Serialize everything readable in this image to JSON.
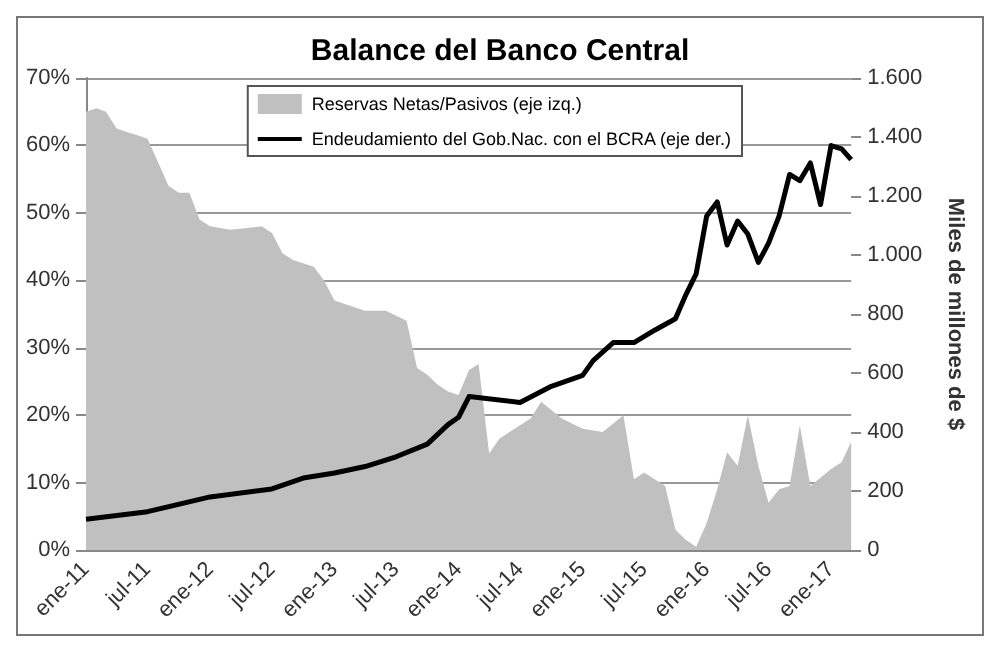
{
  "chart_data": {
    "type": "area",
    "title": "Balance del Banco Central",
    "y2label": "Miles de millones de $",
    "series": [
      {
        "name": "Reservas Netas/Pasivos (eje izq.)",
        "color": "#c0c0c0",
        "x": [
          "2011-01",
          "2011-02",
          "2011-03",
          "2011-04",
          "2011-05",
          "2011-06",
          "2011-07",
          "2011-08",
          "2011-09",
          "2011-10",
          "2011-11",
          "2011-12",
          "2012-01",
          "2012-03",
          "2012-06",
          "2012-07",
          "2012-08",
          "2012-09",
          "2012-11",
          "2012-12",
          "2013-01",
          "2013-04",
          "2013-06",
          "2013-08",
          "2013-09",
          "2013-10",
          "2013-11",
          "2013-12",
          "2014-01",
          "2014-02",
          "2014-03",
          "2014-04",
          "2014-05",
          "2014-07",
          "2014-08",
          "2014-09",
          "2014-11",
          "2015-01",
          "2015-03",
          "2015-05",
          "2015-06",
          "2015-07",
          "2015-09",
          "2015-10",
          "2015-11",
          "2015-12",
          "2016-01",
          "2016-02",
          "2016-03",
          "2016-04",
          "2016-05",
          "2016-06",
          "2016-07",
          "2016-08",
          "2016-09",
          "2016-10",
          "2016-11",
          "2017-01",
          "2017-02",
          "2017-03"
        ],
        "values": [
          65,
          65.5,
          65,
          62.5,
          62,
          61.5,
          61,
          57.5,
          54,
          53,
          53,
          49,
          48,
          47.5,
          48,
          47,
          44,
          43,
          42,
          40,
          37,
          35.5,
          35.5,
          34,
          27,
          26,
          24.5,
          23.5,
          23,
          26.7,
          27.6,
          14.3,
          16.5,
          18.5,
          19.5,
          22,
          19.5,
          18,
          17.5,
          20,
          10.5,
          11.5,
          9.5,
          3,
          1.5,
          0.5,
          4,
          9,
          14.5,
          12.5,
          20,
          12.5,
          7,
          9,
          9.5,
          18.5,
          9.5,
          12,
          13,
          16
        ]
      },
      {
        "name": "Endeudamiento del Gob.Nac. con el BCRA (eje der.)",
        "type": "line",
        "axis": "y2",
        "color": "#000000",
        "x": [
          "2011-01",
          "2011-07",
          "2012-01",
          "2012-07",
          "2012-10",
          "2013-01",
          "2013-04",
          "2013-07",
          "2013-10",
          "2013-12",
          "2014-01",
          "2014-02",
          "2014-07",
          "2014-10",
          "2015-01",
          "2015-02",
          "2015-04",
          "2015-06",
          "2015-08",
          "2015-10",
          "2015-11",
          "2015-12",
          "2016-01",
          "2016-02",
          "2016-03",
          "2016-04",
          "2016-05",
          "2016-06",
          "2016-07",
          "2016-08",
          "2016-09",
          "2016-10",
          "2016-11",
          "2016-12",
          "2016-12-20",
          "2017-01",
          "2017-02",
          "2017-03"
        ],
        "values": [
          104,
          130,
          180,
          207,
          244,
          261,
          283,
          316,
          359,
          425,
          450,
          520,
          500,
          555,
          592,
          642,
          703,
          703,
          745,
          784,
          866,
          936,
          1132,
          1180,
          1034,
          1115,
          1071,
          975,
          1040,
          1132,
          1273,
          1252,
          1312,
          1171,
          1295,
          1371,
          1360,
          1323
        ]
      }
    ],
    "xlim": [
      "2011-01",
      "2017-03"
    ],
    "xticks": [
      {
        "value": "2011-01",
        "label": "ene-11"
      },
      {
        "value": "2011-07",
        "label": "jul-11"
      },
      {
        "value": "2012-01",
        "label": "ene-12"
      },
      {
        "value": "2012-07",
        "label": "jul-12"
      },
      {
        "value": "2013-01",
        "label": "ene-13"
      },
      {
        "value": "2013-07",
        "label": "jul-13"
      },
      {
        "value": "2014-01",
        "label": "ene-14"
      },
      {
        "value": "2014-07",
        "label": "jul-14"
      },
      {
        "value": "2015-01",
        "label": "ene-15"
      },
      {
        "value": "2015-07",
        "label": "jul-15"
      },
      {
        "value": "2016-01",
        "label": "ene-16"
      },
      {
        "value": "2016-07",
        "label": "jul-16"
      },
      {
        "value": "2017-01",
        "label": "ene-17"
      }
    ],
    "ylim": [
      0,
      70
    ],
    "yticks": [
      {
        "value": 0,
        "label": "0%"
      },
      {
        "value": 10,
        "label": "10%"
      },
      {
        "value": 20,
        "label": "20%"
      },
      {
        "value": 30,
        "label": "30%"
      },
      {
        "value": 40,
        "label": "40%"
      },
      {
        "value": 50,
        "label": "50%"
      },
      {
        "value": 60,
        "label": "60%"
      },
      {
        "value": 70,
        "label": "70%"
      }
    ],
    "y2lim": [
      0,
      1600
    ],
    "y2ticks": [
      0,
      200,
      400,
      600,
      800,
      {
        "value": 1000,
        "label": "1.000"
      },
      {
        "value": 1200,
        "label": "1.200"
      },
      {
        "value": 1400,
        "label": "1.400"
      },
      {
        "value": 1600,
        "label": "1.600"
      }
    ],
    "grid": "y",
    "legend": "top right",
    "line_style": "solid"
  }
}
